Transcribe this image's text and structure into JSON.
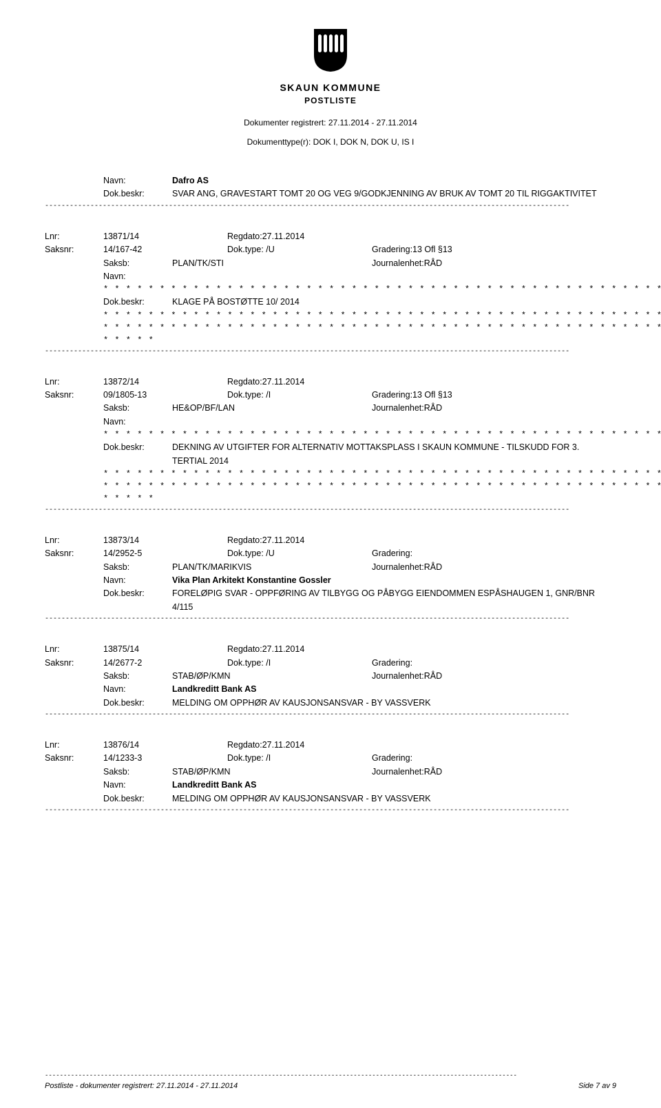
{
  "header": {
    "org_name": "SKAUN KOMMUNE",
    "subtitle": "POSTLISTE",
    "meta1": "Dokumenter registrert: 27.11.2014 - 27.11.2014",
    "meta2": "Dokumenttype(r): DOK I, DOK N, DOK U, IS I",
    "logo_fill": "#000000"
  },
  "dash_line": "-------------------------------------------------------------------------------------------------------------------------------",
  "entries": [
    {
      "top_rows": [
        {
          "label": "Navn:",
          "value": "Dafro AS",
          "bold": true
        },
        {
          "label": "Dok.beskr:",
          "value": "SVAR ANG, GRAVESTART TOMT 20 OG VEG 9/GODKJENNING AV BRUK AV TOMT 20 TIL RIGGAKTIVITET"
        }
      ]
    },
    {
      "lnr_label": "Lnr:",
      "lnr_val": "13871/14",
      "regdato": "Regdato:27.11.2014",
      "saksnr_label": "Saksnr:",
      "saksnr_val": "14/167-42",
      "doktype": "Dok.type: /U",
      "gradering": "Gradering:13 Ofl §13",
      "saksb_label": "Saksb:",
      "saksb_val": "PLAN/TK/STI",
      "journal": "Journalenhet:RÅD",
      "navn_label": "Navn:",
      "navn_val": "",
      "redacted": true,
      "beskr_label": "Dok.beskr:",
      "beskr_val": "KLAGE PÅ BOSTØTTE 10/ 2014",
      "redacted_after": true
    },
    {
      "lnr_label": "Lnr:",
      "lnr_val": "13872/14",
      "regdato": "Regdato:27.11.2014",
      "saksnr_label": "Saksnr:",
      "saksnr_val": "09/1805-13",
      "doktype": "Dok.type: /I",
      "gradering": "Gradering:13 Ofl §13",
      "saksb_label": "Saksb:",
      "saksb_val": "HE&OP/BF/LAN",
      "journal": "Journalenhet:RÅD",
      "navn_label": "Navn:",
      "navn_val": "",
      "redacted": true,
      "beskr_label": "Dok.beskr:",
      "beskr_val": "DEKNING AV UTGIFTER FOR ALTERNATIV MOTTAKSPLASS I  SKAUN KOMMUNE - TILSKUDD FOR 3. TERTIAL 2014",
      "redacted_after": true
    },
    {
      "lnr_label": "Lnr:",
      "lnr_val": "13873/14",
      "regdato": "Regdato:27.11.2014",
      "saksnr_label": "Saksnr:",
      "saksnr_val": "14/2952-5",
      "doktype": "Dok.type: /U",
      "gradering": "Gradering:",
      "saksb_label": "Saksb:",
      "saksb_val": "PLAN/TK/MARIKVIS",
      "journal": "Journalenhet:RÅD",
      "navn_label": "Navn:",
      "navn_val": "Vika Plan Arkitekt Konstantine Gossler",
      "navn_bold": true,
      "beskr_label": "Dok.beskr:",
      "beskr_val": "FORELØPIG SVAR - OPPFØRING AV TILBYGG OG PÅBYGG EIENDOMMEN ESPÅSHAUGEN 1, GNR/BNR 4/115"
    },
    {
      "lnr_label": "Lnr:",
      "lnr_val": "13875/14",
      "regdato": "Regdato:27.11.2014",
      "saksnr_label": "Saksnr:",
      "saksnr_val": "14/2677-2",
      "doktype": "Dok.type: /I",
      "gradering": "Gradering:",
      "saksb_label": "Saksb:",
      "saksb_val": "STAB/ØP/KMN",
      "journal": "Journalenhet:RÅD",
      "navn_label": "Navn:",
      "navn_val": "Landkreditt Bank AS",
      "navn_bold": true,
      "beskr_label": "Dok.beskr:",
      "beskr_val": "MELDING OM OPPHØR AV KAUSJONSANSVAR -  BY VASSVERK"
    },
    {
      "lnr_label": "Lnr:",
      "lnr_val": "13876/14",
      "regdato": "Regdato:27.11.2014",
      "saksnr_label": "Saksnr:",
      "saksnr_val": "14/1233-3",
      "doktype": "Dok.type: /I",
      "gradering": "Gradering:",
      "saksb_label": "Saksb:",
      "saksb_val": "STAB/ØP/KMN",
      "journal": "Journalenhet:RÅD",
      "navn_label": "Navn:",
      "navn_val": "Landkreditt Bank AS",
      "navn_bold": true,
      "beskr_label": "Dok.beskr:",
      "beskr_val": "MELDING OM OPPHØR AV KAUSJONSANSVAR -  BY VASSVERK"
    }
  ],
  "stars_long": "* * * * * * * * * * * * * * * * * * * * * * * * * * * * * * * * * * * * * * * * * * * * * * * * * * * * * * * * * * * * *",
  "stars_med": "* * * * * * * * * * * * * * * * * * * * * * * * * * * * * * * * * * * * * * * * * * * * * * * * * * * * * * * * * * *",
  "stars_short": "* * * * *",
  "footer": {
    "left": "Postliste - dokumenter registrert: 27.11.2014 - 27.11.2014",
    "right": "Side 7 av 9"
  }
}
